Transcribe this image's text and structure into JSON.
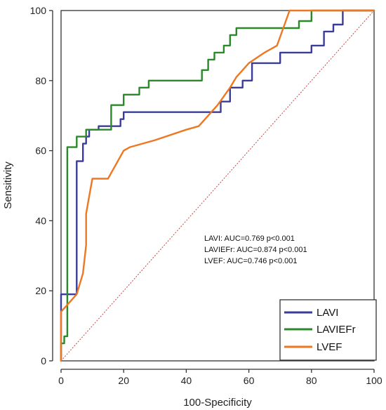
{
  "chart_data": {
    "type": "line",
    "title": "",
    "xlabel": "100-Specificity",
    "ylabel": "Sensitivity",
    "xlim": [
      0,
      100
    ],
    "ylim": [
      0,
      100
    ],
    "xticks": [
      0,
      20,
      40,
      60,
      80,
      100
    ],
    "yticks": [
      0,
      20,
      40,
      60,
      80,
      100
    ],
    "grid": false,
    "legend_position": "bottom-right",
    "annotations": [
      "LAVI: AUC=0.769 p<0.001",
      "LAVIEFr: AUC=0.874  p<0.001",
      "LVEF: AUC=0.746 p<0.001"
    ],
    "series": [
      {
        "name": "LAVI",
        "color": "#3a3c9a",
        "x": [
          0,
          0,
          5,
          5,
          7,
          7,
          8,
          8,
          9,
          9,
          10,
          10,
          12,
          12,
          17,
          17,
          19,
          19,
          20,
          20,
          47,
          47,
          51,
          51,
          54,
          54,
          58,
          58,
          61,
          61,
          70,
          70,
          80,
          80,
          84,
          84,
          87,
          87,
          90,
          90,
          100
        ],
        "y": [
          0,
          19,
          19,
          57,
          57,
          62,
          62,
          64,
          64,
          66,
          66,
          66,
          66,
          67,
          67,
          67,
          67,
          69,
          69,
          71,
          71,
          71,
          71,
          74,
          74,
          78,
          78,
          80,
          80,
          85,
          85,
          88,
          88,
          90,
          90,
          94,
          94,
          96,
          96,
          100,
          100
        ]
      },
      {
        "name": "LAVIEFr",
        "color": "#2a8a2a",
        "x": [
          0,
          0,
          1,
          1,
          2,
          2,
          3,
          3,
          5,
          5,
          6,
          6,
          8,
          8,
          12,
          12,
          16,
          16,
          20,
          20,
          22,
          22,
          25,
          25,
          28,
          28,
          37,
          37,
          45,
          45,
          47,
          47,
          49,
          49,
          52,
          52,
          54,
          54,
          56,
          56,
          58,
          58,
          70,
          70,
          76,
          76,
          80,
          80,
          100
        ],
        "y": [
          0,
          5,
          5,
          7,
          7,
          61,
          61,
          61,
          61,
          64,
          64,
          64,
          64,
          66,
          66,
          66,
          66,
          73,
          73,
          76,
          76,
          76,
          76,
          78,
          78,
          80,
          80,
          80,
          80,
          83,
          83,
          86,
          86,
          88,
          88,
          90,
          90,
          93,
          93,
          95,
          95,
          95,
          95,
          95,
          95,
          97,
          97,
          100,
          100
        ]
      },
      {
        "name": "LVEF",
        "color": "#ee7722",
        "x": [
          0,
          0,
          5,
          7,
          8,
          8,
          9,
          10,
          11,
          15,
          20,
          22,
          30,
          40,
          44,
          50,
          54,
          56,
          60,
          65,
          69,
          73,
          80,
          100
        ],
        "y": [
          0,
          14,
          19,
          25,
          33,
          42,
          47,
          52,
          52,
          52,
          60,
          61,
          63,
          66,
          67,
          73,
          78,
          81,
          85,
          88,
          90,
          100,
          100,
          100
        ]
      }
    ],
    "reference_line": {
      "x": [
        0,
        100
      ],
      "y": [
        0,
        100
      ],
      "color": "#c44"
    }
  }
}
